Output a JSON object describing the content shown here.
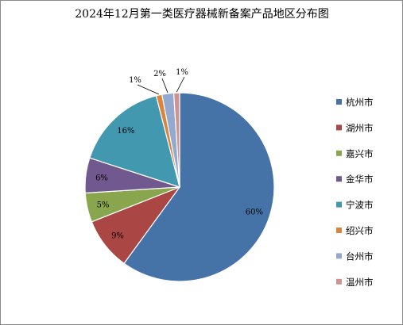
{
  "chart_data": {
    "type": "pie",
    "title": "2024年12月第一类医疗器械新备案产品地区分布图",
    "categories": [
      "杭州市",
      "湖州市",
      "嘉兴市",
      "金华市",
      "宁波市",
      "绍兴市",
      "台州市",
      "温州市"
    ],
    "values": [
      60,
      9,
      5,
      6,
      16,
      1,
      2,
      1
    ],
    "data_labels": [
      "60%",
      "9%",
      "5%",
      "6%",
      "16%",
      "1%",
      "2%",
      "1%"
    ],
    "colors": [
      "#4572A7",
      "#AA4643",
      "#89A54E",
      "#71588F",
      "#4198AF",
      "#DB843D",
      "#93A9CF",
      "#D19392"
    ],
    "legend_position": "right",
    "start_angle": "12 o'clock",
    "direction": "clockwise"
  }
}
